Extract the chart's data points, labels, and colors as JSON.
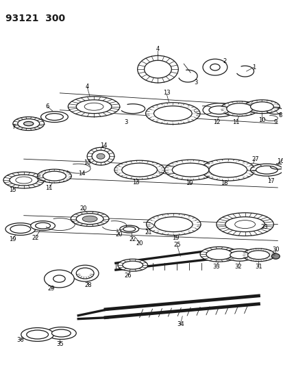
{
  "title": "93121  300",
  "bg_color": "#ffffff",
  "line_color": "#1a1a1a",
  "fig_width": 4.14,
  "fig_height": 5.33,
  "dpi": 100
}
